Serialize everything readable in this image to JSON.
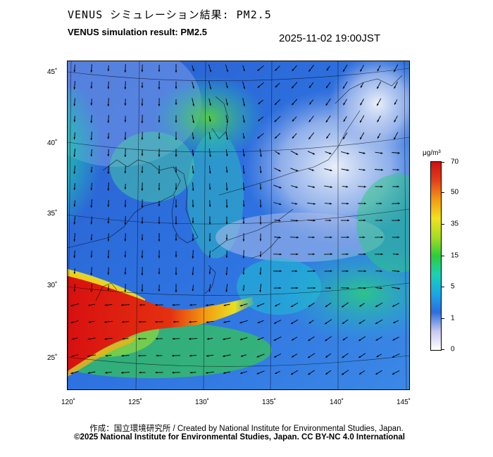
{
  "header": {
    "title_jp": "VENUS シミュレーション結果: PM2.5",
    "title_en": "VENUS simulation result: PM2.5",
    "timestamp": "2025-11-02 19:00JST"
  },
  "map": {
    "lat_labels": [
      "45˚",
      "40˚",
      "35˚",
      "30˚",
      "25˚"
    ],
    "lon_labels": [
      "120˚",
      "125˚",
      "130˚",
      "135˚",
      "140˚",
      "145˚"
    ],
    "description_colors": {
      "ocean_low": "#2f6fdc",
      "land_low": "#c8d6f2",
      "moderate": "#31c46a",
      "high": "#e8dc2a",
      "extreme": "#e02a10"
    }
  },
  "colorbar": {
    "unit": "μg/m³",
    "ticks": [
      "70",
      "50",
      "35",
      "15",
      "5",
      "1",
      "0"
    ],
    "colors": [
      "#ffffff",
      "#c7c7f0",
      "#2d6de0",
      "#1aa8e6",
      "#19d2b4",
      "#2ccd3c",
      "#a6dd22",
      "#f2e21c",
      "#f59a12",
      "#e2401a",
      "#d01010"
    ]
  },
  "footer": {
    "credit_line1": "作成：国立環境研究所 / Created by National Institute for Environmental Studies, Japan.",
    "credit_line2": "©2025 National Institute for Environmental Studies, Japan. CC BY-NC 4.0 International"
  }
}
